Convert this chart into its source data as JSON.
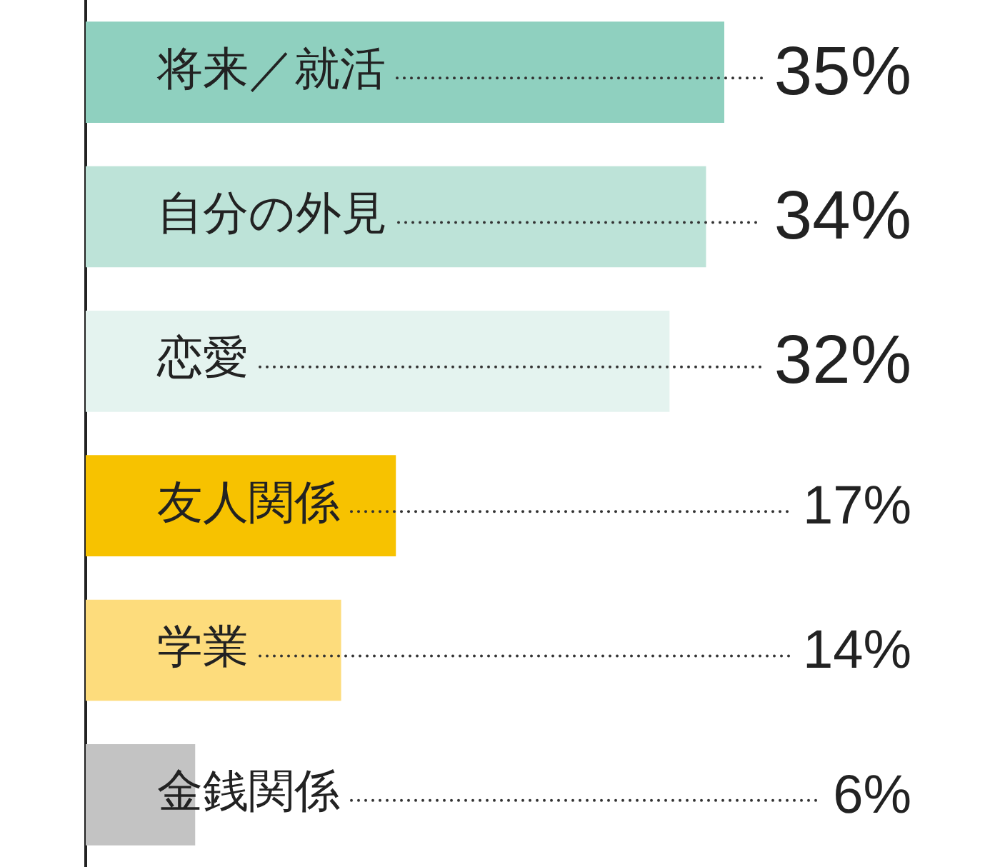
{
  "chart_data": {
    "type": "bar",
    "orientation": "horizontal",
    "categories": [
      "将来／就活",
      "自分の外見",
      "恋愛",
      "友人関係",
      "学業",
      "金銭関係"
    ],
    "values": [
      35,
      34,
      32,
      17,
      14,
      6
    ],
    "colors": [
      "#8fd0bf",
      "#bde3d8",
      "#e4f3ef",
      "#f7c200",
      "#fddc7c",
      "#c3c3c3"
    ],
    "value_labels": [
      "35%",
      "34%",
      "32%",
      "17%",
      "14%",
      "6%"
    ],
    "legend": false
  }
}
